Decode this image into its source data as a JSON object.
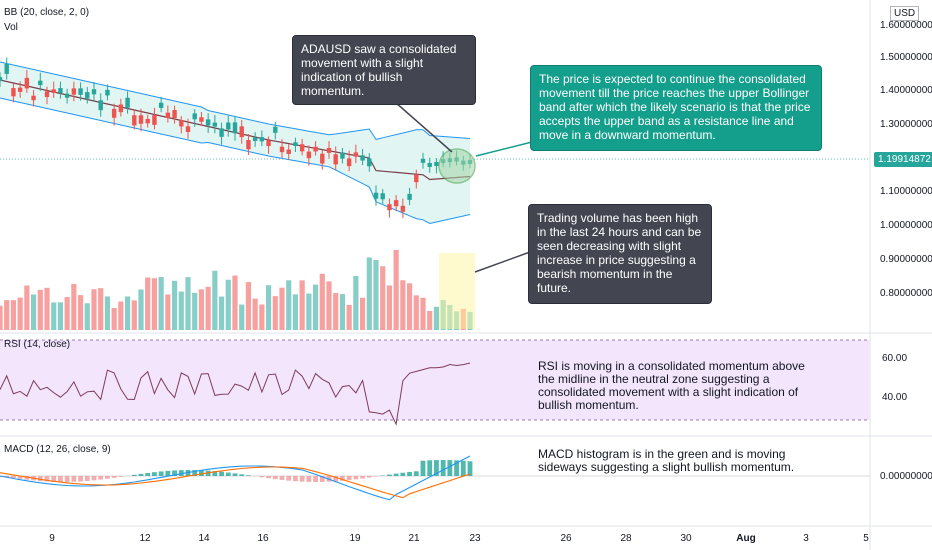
{
  "panes": {
    "main": {
      "indicator_label": "BB (20, close, 2, 0)",
      "volume_label": "Vol"
    },
    "rsi": {
      "label": "RSI (14, close)"
    },
    "macd": {
      "label": "MACD (12, 26, close, 9)"
    }
  },
  "currency_badge": "USD",
  "price_axis": [
    "1.60000000",
    "1.50000000",
    "1.40000000",
    "1.30000000",
    "1.10000000",
    "1.00000000",
    "0.90000000",
    "0.80000000"
  ],
  "current_price": "1.19914872",
  "rsi_axis": [
    "60.00",
    "40.00"
  ],
  "macd_axis": [
    "0.00000000"
  ],
  "date_axis": [
    "9",
    "12",
    "14",
    "16",
    "19",
    "21",
    "23",
    "26",
    "28",
    "30",
    "Aug",
    "3",
    "5"
  ],
  "annotations": {
    "consolidation": "ADAUSD saw a consolidated movement with a slight indication of bullish momentum.",
    "bollinger": "The price is expected to continue the consolidated movement till the price reaches the upper Bollinger band after which the likely scenario is that the price accepts the upper band as a resistance line and move in a downward momentum.",
    "volume": "Trading volume has been high in the last 24 hours and can be seen decreasing with slight increase in price suggesting a bearish momentum in the future.",
    "rsi": "RSI is moving in a consolidated momentum above the midline in the neutral zone suggesting a consolidated movement with a slight indication of bullish momentum.",
    "macd": "MACD histogram is in the green and is moving sideways suggesting a slight bullish momentum."
  },
  "colors": {
    "up": "#26a69a",
    "down": "#ef5350",
    "bb_band": "#2196f3",
    "bb_fill": "#e1f5f2",
    "bb_basis": "#7b3e4b",
    "rsi_line": "#7e3c5a",
    "rsi_bg": "#f3e5fb",
    "macd_line": "#2196f3",
    "signal_line": "#ff6d00",
    "note_dark": "#434651",
    "note_teal": "#149e8c"
  }
}
